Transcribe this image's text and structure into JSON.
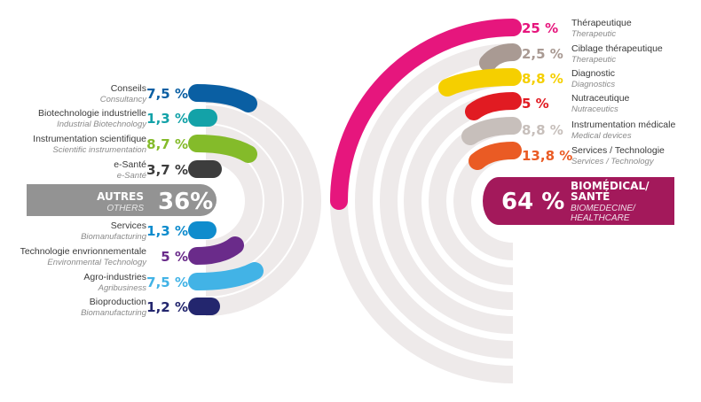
{
  "chart_data": {
    "type": "pie",
    "groups": [
      {
        "name_fr": "AUTRES",
        "name_en": "OTHERS",
        "total_label": "36%",
        "value": 36,
        "color": "#939393",
        "items": [
          {
            "label_fr": "Conseils",
            "label_en": "Consultancy",
            "value_label": "7,5 %",
            "value": 7.5,
            "color": "#0a5fa3"
          },
          {
            "label_fr": "Biotechnologie industrielle",
            "label_en": "Industrial Biotechnology",
            "value_label": "1,3 %",
            "value": 1.3,
            "color": "#13a2a8"
          },
          {
            "label_fr": "Instrumentation scientifique",
            "label_en": "Scientific instrumentation",
            "value_label": "8,7 %",
            "value": 8.7,
            "color": "#84bb2a"
          },
          {
            "label_fr": "e-Santé",
            "label_en": "e-Santé",
            "value_label": "3,7 %",
            "value": 3.7,
            "color": "#3d3d3d"
          },
          {
            "label_fr": "Services",
            "label_en": "Biomanufacturing",
            "value_label": "1,3 %",
            "value": 1.3,
            "color": "#0f8ccd"
          },
          {
            "label_fr": "Technologie envrionnementale",
            "label_en": "Environmental Technology",
            "value_label": "5 %",
            "value": 5,
            "color": "#6a2b8a"
          },
          {
            "label_fr": "Agro-industries",
            "label_en": "Agribusiness",
            "value_label": "7,5 %",
            "value": 7.5,
            "color": "#42b3e6"
          },
          {
            "label_fr": "Bioproduction",
            "label_en": "Biomanufacturing",
            "value_label": "1,2 %",
            "value": 1.2,
            "color": "#23266e"
          }
        ]
      },
      {
        "name_fr": "BIOMÉDICAL/ SANTÉ",
        "name_fr_lines": [
          "BIOMÉDICAL/",
          "SANTÉ"
        ],
        "name_en": "BIOMEDECINE/ HEALTHCARE",
        "name_en_lines": [
          "BIOMEDECINE/",
          "HEALTHCARE"
        ],
        "total_label": "64 %",
        "value": 64,
        "color": "#a3195b",
        "items": [
          {
            "label_fr": "Thérapeutique",
            "label_en": "Therapeutic",
            "value_label": "25 %",
            "value": 25,
            "color": "#e6167d"
          },
          {
            "label_fr": "Ciblage thérapeutique",
            "label_en": "Therapeutic",
            "value_label": "2,5 %",
            "value": 2.5,
            "color": "#a99a93"
          },
          {
            "label_fr": "Diagnostic",
            "label_en": "Diagnostics",
            "value_label": "8,8 %",
            "value": 8.8,
            "color": "#f5cf00"
          },
          {
            "label_fr": "Nutraceutique",
            "label_en": "Nutraceutics",
            "value_label": "5 %",
            "value": 5,
            "color": "#e11b22"
          },
          {
            "label_fr": "Instrumentation médicale",
            "label_en": "Medical devices",
            "value_label": "8,8 %",
            "value": 8.8,
            "color": "#c7bfbb"
          },
          {
            "label_fr": "Services / Technologie",
            "label_en": "Services / Technology",
            "value_label": "13,8 %",
            "value": 13.8,
            "color": "#ea5b24"
          }
        ]
      }
    ],
    "track_color": "#eeeaea"
  }
}
